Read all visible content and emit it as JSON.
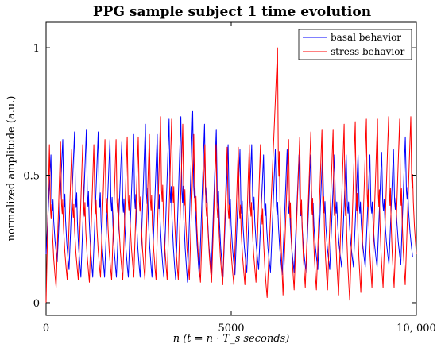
{
  "chart_data": {
    "type": "line",
    "title": "PPG sample subject 1 time evolution",
    "xlabel": "n (t = n · T_s seconds)",
    "ylabel": "normalized amplitude (a.u.)",
    "xlim": [
      0,
      10000
    ],
    "ylim": [
      -0.05,
      1.1
    ],
    "xticks": [
      0,
      5000,
      10000
    ],
    "xtick_labels": [
      "0",
      "5000",
      "10, 000"
    ],
    "yticks": [
      0,
      0.5,
      1
    ],
    "ytick_labels": [
      "0",
      "0.5",
      "1"
    ],
    "grid": false,
    "legend_position": "top-right",
    "series": [
      {
        "name": "basal behavior",
        "color": "#0000ff",
        "beat_period": 319,
        "first_peak": 130,
        "baseline": 0.16,
        "peaks": [
          {
            "x": 130,
            "y": 0.58
          },
          {
            "x": 450,
            "y": 0.64
          },
          {
            "x": 769,
            "y": 0.67
          },
          {
            "x": 1088,
            "y": 0.68
          },
          {
            "x": 1407,
            "y": 0.67
          },
          {
            "x": 1726,
            "y": 0.64
          },
          {
            "x": 2045,
            "y": 0.63
          },
          {
            "x": 2364,
            "y": 0.66
          },
          {
            "x": 2683,
            "y": 0.7
          },
          {
            "x": 3002,
            "y": 0.66
          },
          {
            "x": 3321,
            "y": 0.72
          },
          {
            "x": 3640,
            "y": 0.73
          },
          {
            "x": 3959,
            "y": 0.75
          },
          {
            "x": 4278,
            "y": 0.7
          },
          {
            "x": 4597,
            "y": 0.68
          },
          {
            "x": 4916,
            "y": 0.62
          },
          {
            "x": 5235,
            "y": 0.6
          },
          {
            "x": 5554,
            "y": 0.62
          },
          {
            "x": 5873,
            "y": 0.58
          },
          {
            "x": 6192,
            "y": 0.6
          },
          {
            "x": 6511,
            "y": 0.6
          },
          {
            "x": 6830,
            "y": 0.58
          },
          {
            "x": 7149,
            "y": 0.58
          },
          {
            "x": 7468,
            "y": 0.59
          },
          {
            "x": 7787,
            "y": 0.58
          },
          {
            "x": 8106,
            "y": 0.58
          },
          {
            "x": 8425,
            "y": 0.58
          },
          {
            "x": 8744,
            "y": 0.58
          },
          {
            "x": 9063,
            "y": 0.59
          },
          {
            "x": 9382,
            "y": 0.6
          },
          {
            "x": 9701,
            "y": 0.65
          }
        ],
        "troughs": [
          {
            "x": 0,
            "y": 0.19
          },
          {
            "x": 300,
            "y": 0.16
          },
          {
            "x": 620,
            "y": 0.13
          },
          {
            "x": 940,
            "y": 0.1
          },
          {
            "x": 1260,
            "y": 0.1
          },
          {
            "x": 1580,
            "y": 0.1
          },
          {
            "x": 1900,
            "y": 0.1
          },
          {
            "x": 2220,
            "y": 0.1
          },
          {
            "x": 2540,
            "y": 0.1
          },
          {
            "x": 2860,
            "y": 0.1
          },
          {
            "x": 3180,
            "y": 0.1
          },
          {
            "x": 3500,
            "y": 0.09
          },
          {
            "x": 3820,
            "y": 0.08
          },
          {
            "x": 4140,
            "y": 0.1
          },
          {
            "x": 4460,
            "y": 0.11
          },
          {
            "x": 4780,
            "y": 0.1
          },
          {
            "x": 5100,
            "y": 0.11
          },
          {
            "x": 5420,
            "y": 0.12
          },
          {
            "x": 5740,
            "y": 0.13
          },
          {
            "x": 6060,
            "y": 0.12
          },
          {
            "x": 6380,
            "y": 0.11
          },
          {
            "x": 6700,
            "y": 0.12
          },
          {
            "x": 7020,
            "y": 0.12
          },
          {
            "x": 7340,
            "y": 0.13
          },
          {
            "x": 7660,
            "y": 0.13
          },
          {
            "x": 7980,
            "y": 0.14
          },
          {
            "x": 8300,
            "y": 0.14
          },
          {
            "x": 8620,
            "y": 0.14
          },
          {
            "x": 8940,
            "y": 0.14
          },
          {
            "x": 9260,
            "y": 0.15
          },
          {
            "x": 9580,
            "y": 0.15
          },
          {
            "x": 9900,
            "y": 0.18
          }
        ]
      },
      {
        "name": "stress behavior",
        "color": "#ff0000",
        "beat_period": 300,
        "first_peak": 90,
        "baseline": 0.13,
        "peaks": [
          {
            "x": 90,
            "y": 0.62
          },
          {
            "x": 390,
            "y": 0.63
          },
          {
            "x": 690,
            "y": 0.6
          },
          {
            "x": 990,
            "y": 0.62
          },
          {
            "x": 1290,
            "y": 0.62
          },
          {
            "x": 1590,
            "y": 0.64
          },
          {
            "x": 1890,
            "y": 0.64
          },
          {
            "x": 2190,
            "y": 0.65
          },
          {
            "x": 2490,
            "y": 0.65
          },
          {
            "x": 2790,
            "y": 0.66
          },
          {
            "x": 3090,
            "y": 0.73
          },
          {
            "x": 3390,
            "y": 0.72
          },
          {
            "x": 3690,
            "y": 0.7
          },
          {
            "x": 3990,
            "y": 0.66
          },
          {
            "x": 4290,
            "y": 0.62
          },
          {
            "x": 4590,
            "y": 0.62
          },
          {
            "x": 4890,
            "y": 0.61
          },
          {
            "x": 5190,
            "y": 0.61
          },
          {
            "x": 5490,
            "y": 0.62
          },
          {
            "x": 5790,
            "y": 0.62
          },
          {
            "x": 6250,
            "y": 1.0
          },
          {
            "x": 6550,
            "y": 0.64
          },
          {
            "x": 6850,
            "y": 0.65
          },
          {
            "x": 7150,
            "y": 0.67
          },
          {
            "x": 7450,
            "y": 0.68
          },
          {
            "x": 7750,
            "y": 0.68
          },
          {
            "x": 8050,
            "y": 0.7
          },
          {
            "x": 8350,
            "y": 0.71
          },
          {
            "x": 8650,
            "y": 0.72
          },
          {
            "x": 8950,
            "y": 0.72
          },
          {
            "x": 9250,
            "y": 0.73
          },
          {
            "x": 9550,
            "y": 0.72
          },
          {
            "x": 9850,
            "y": 0.73
          }
        ],
        "troughs": [
          {
            "x": 0,
            "y": 0.0
          },
          {
            "x": 270,
            "y": 0.06
          },
          {
            "x": 570,
            "y": 0.09
          },
          {
            "x": 870,
            "y": 0.09
          },
          {
            "x": 1170,
            "y": 0.08
          },
          {
            "x": 1470,
            "y": 0.1
          },
          {
            "x": 1770,
            "y": 0.09
          },
          {
            "x": 2070,
            "y": 0.09
          },
          {
            "x": 2370,
            "y": 0.1
          },
          {
            "x": 2670,
            "y": 0.09
          },
          {
            "x": 2970,
            "y": 0.09
          },
          {
            "x": 3270,
            "y": 0.09
          },
          {
            "x": 3570,
            "y": 0.09
          },
          {
            "x": 3870,
            "y": 0.09
          },
          {
            "x": 4170,
            "y": 0.08
          },
          {
            "x": 4470,
            "y": 0.08
          },
          {
            "x": 4770,
            "y": 0.07
          },
          {
            "x": 5070,
            "y": 0.07
          },
          {
            "x": 5370,
            "y": 0.07
          },
          {
            "x": 5670,
            "y": 0.08
          },
          {
            "x": 5970,
            "y": 0.02
          },
          {
            "x": 6400,
            "y": 0.03
          },
          {
            "x": 6700,
            "y": 0.05
          },
          {
            "x": 7000,
            "y": 0.06
          },
          {
            "x": 7300,
            "y": 0.05
          },
          {
            "x": 7600,
            "y": 0.05
          },
          {
            "x": 7900,
            "y": 0.03
          },
          {
            "x": 8200,
            "y": 0.01
          },
          {
            "x": 8500,
            "y": 0.04
          },
          {
            "x": 8800,
            "y": 0.06
          },
          {
            "x": 9100,
            "y": 0.06
          },
          {
            "x": 9400,
            "y": 0.06
          },
          {
            "x": 9700,
            "y": 0.07
          },
          {
            "x": 10000,
            "y": 0.19
          }
        ]
      }
    ]
  }
}
